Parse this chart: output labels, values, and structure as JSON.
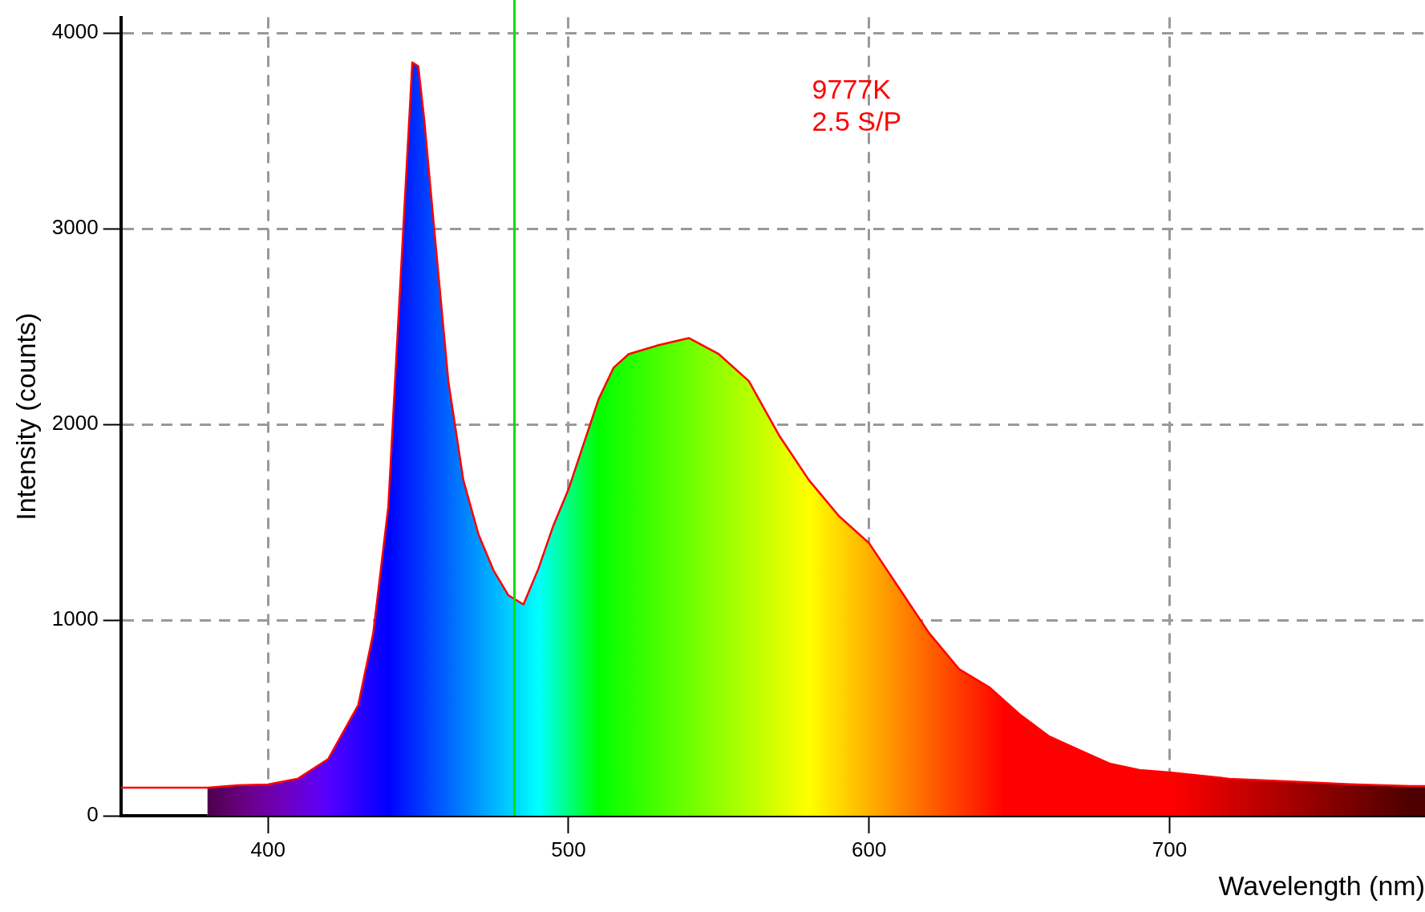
{
  "chart_data": {
    "type": "area",
    "xlabel": "Wavelength (nm)",
    "ylabel": "Intensity (counts)",
    "annotations": [
      "9777K",
      "2.5 S/P"
    ],
    "x": [
      351,
      380,
      390,
      400,
      410,
      420,
      430,
      435,
      440,
      445,
      448,
      450,
      452,
      455,
      460,
      465,
      470,
      475,
      480,
      485,
      490,
      495,
      500,
      505,
      510,
      515,
      520,
      530,
      540,
      550,
      560,
      570,
      580,
      590,
      600,
      610,
      620,
      630,
      640,
      650,
      660,
      670,
      680,
      690,
      700,
      720,
      740,
      760,
      780,
      785
    ],
    "series": [
      {
        "color": "#ff0000",
        "values": [
          143,
          143,
          156,
          160,
          190,
          290,
          565,
          933,
          1577,
          3000,
          3850,
          3830,
          3554,
          3048,
          2220,
          1715,
          1439,
          1255,
          1126,
          1080,
          1264,
          1485,
          1669,
          1899,
          2129,
          2290,
          2359,
          2405,
          2441,
          2359,
          2221,
          1945,
          1715,
          1531,
          1393,
          1163,
          933,
          749,
          657,
          520,
          405,
          336,
          267,
          234,
          221,
          189,
          175,
          161,
          152,
          152
        ]
      }
    ],
    "xlim": [
      351,
      785
    ],
    "ylim": [
      0,
      4080
    ],
    "xticks": [
      400,
      500,
      600,
      700
    ],
    "yticks": [
      0,
      1000,
      2000,
      3000,
      4000
    ],
    "grid": true,
    "legend": false,
    "ref_lines": [
      {
        "axis": "x",
        "value": 482,
        "color": "#00e000"
      }
    ]
  }
}
